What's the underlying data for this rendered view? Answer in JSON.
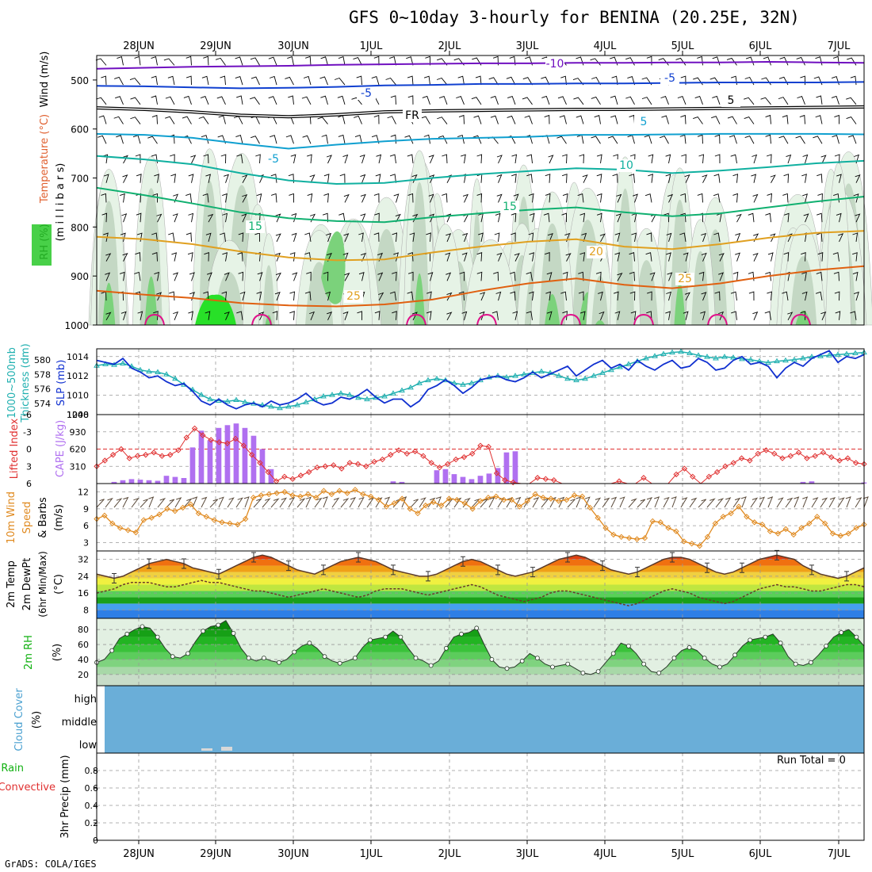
{
  "title": "GFS 0~10day 3-hourly for BENINA (20.25E, 32N)",
  "credit": "GrADS: COLA/IGES",
  "run_total": "Run Total = 0",
  "colors": {
    "slp": "#1030d0",
    "thickness": "#20b0b0",
    "lifted": "#e03030",
    "cape": "#b070f0",
    "wind10": "#e08a20",
    "rh": "#10b010",
    "cloud": "#6aaed8",
    "barb": "#000000",
    "t_purple": "#7010c0",
    "t_blue": "#1040d0",
    "t_cyan": "#10a0d0",
    "t_teal": "#10b0a0",
    "t_green": "#10b070",
    "t_orange": "#e0a020",
    "t_dkorange": "#e06010",
    "t_magenta": "#e0108a"
  },
  "chart_data": [
    {
      "type": "heatmap",
      "name": "upper-air",
      "x_labels": [
        "28JUN",
        "29JUN",
        "30JUN",
        "1JUL",
        "2JUL",
        "3JUL",
        "4JUL",
        "5JUL",
        "6JUL",
        "7JUL"
      ],
      "ylabel_parts": [
        "Wind (m/s)",
        "Temperature (°C)",
        "RH (%)",
        "(millibars)"
      ],
      "ylabel_millibars": "(m i l l i b a r s)",
      "ylabel_wind": "Wind (m/s)",
      "ylabel_temp": "Temperature (°C)",
      "ylabel_rh": "RH (%)",
      "y_ticks": [
        500,
        600,
        700,
        800,
        900,
        1000
      ],
      "ylim": [
        450,
        1000
      ],
      "contours": [
        {
          "label": "-10",
          "color": "purple",
          "level": [
            477,
            475,
            473,
            472,
            471,
            469,
            468,
            467,
            466,
            466,
            465,
            465,
            464,
            464,
            463,
            464,
            465
          ]
        },
        {
          "label": "-5",
          "color": "blue",
          "level": [
            512,
            513,
            515,
            517,
            516,
            514,
            511,
            510,
            508,
            508,
            507,
            507,
            506,
            505,
            505,
            505,
            504
          ]
        },
        {
          "label": "FR",
          "color": "black",
          "level": [
            557,
            560,
            565,
            572,
            575,
            571,
            565,
            563,
            562,
            561,
            560,
            560,
            559,
            558,
            557,
            556,
            555
          ]
        },
        {
          "label": "-5",
          "color": "cyan",
          "level": [
            610,
            612,
            618,
            630,
            640,
            632,
            625,
            620,
            618,
            616,
            612,
            612,
            611,
            610,
            610,
            610,
            611
          ]
        },
        {
          "label": "10",
          "color": "teal",
          "level": [
            655,
            662,
            672,
            690,
            705,
            712,
            710,
            700,
            692,
            686,
            680,
            683,
            690,
            685,
            678,
            670,
            665
          ]
        },
        {
          "label": "15",
          "color": "green",
          "level": [
            720,
            735,
            752,
            770,
            782,
            788,
            790,
            780,
            772,
            765,
            760,
            770,
            778,
            772,
            760,
            748,
            738
          ]
        },
        {
          "label": "20",
          "color": "orange",
          "level": [
            820,
            825,
            835,
            850,
            862,
            868,
            866,
            852,
            840,
            830,
            825,
            840,
            845,
            835,
            822,
            812,
            808
          ]
        },
        {
          "label": "25",
          "color": "dkorange",
          "level": [
            930,
            938,
            945,
            955,
            960,
            962,
            958,
            948,
            930,
            915,
            905,
            918,
            925,
            915,
            900,
            888,
            880
          ]
        }
      ],
      "contour_labels_shown": [
        "-10",
        "-5",
        "FR",
        "-5",
        "5",
        "-5",
        "10",
        "15",
        "15",
        "20",
        "25",
        "25",
        "5"
      ],
      "rh_shading_levels": [
        "50",
        "70",
        "90"
      ]
    },
    {
      "type": "line",
      "name": "slp-thickness",
      "ylabel_left": "Thickness (dm)",
      "ylabel_left2": "1000~500mb",
      "ylabel_right": "SLP (mb)",
      "left_ticks": [
        574,
        576,
        578,
        580
      ],
      "right_ticks": [
        1008,
        1010,
        1012,
        1014
      ],
      "ylim_left": [
        572.5,
        581.5
      ],
      "ylim_right": [
        1008,
        1014.8
      ],
      "series": [
        {
          "name": "SLP",
          "axis": "right",
          "values": [
            1013.6,
            1013.4,
            1013.2,
            1013.8,
            1012.8,
            1012.4,
            1011.8,
            1012.0,
            1011.4,
            1011.0,
            1011.2,
            1010.4,
            1009.4,
            1009.0,
            1009.6,
            1009.0,
            1008.6,
            1009.0,
            1009.2,
            1008.8,
            1009.4,
            1009.0,
            1009.2,
            1009.6,
            1010.2,
            1009.4,
            1009.0,
            1009.2,
            1009.8,
            1009.6,
            1010.0,
            1010.6,
            1009.8,
            1009.2,
            1009.6,
            1009.6,
            1008.8,
            1009.4,
            1010.6,
            1011.0,
            1011.6,
            1011.0,
            1010.2,
            1010.8,
            1011.6,
            1011.8,
            1012.0,
            1011.6,
            1011.4,
            1011.8,
            1012.4,
            1011.8,
            1012.2,
            1012.6,
            1013.0,
            1012.0,
            1012.6,
            1013.2,
            1013.6,
            1012.8,
            1013.2,
            1012.6,
            1013.6,
            1013.0,
            1012.6,
            1013.2,
            1013.6,
            1012.8,
            1013.0,
            1013.8,
            1013.4,
            1012.6,
            1012.8,
            1013.6,
            1014.0,
            1013.2,
            1013.4,
            1013.0,
            1011.8,
            1012.8,
            1013.4,
            1013.0,
            1013.8,
            1014.2,
            1014.6,
            1013.4,
            1014.0,
            1013.8,
            1014.2
          ]
        },
        {
          "name": "Thickness",
          "axis": "left",
          "values": [
            579.2,
            579.4,
            579.3,
            579.5,
            579.1,
            578.6,
            578.4,
            578.3,
            578.0,
            577.4,
            576.6,
            575.9,
            575.2,
            574.6,
            574.4,
            574.3,
            574.5,
            574.2,
            574.0,
            573.8,
            573.6,
            573.4,
            573.6,
            573.8,
            574.2,
            574.6,
            575.0,
            575.2,
            575.4,
            575.2,
            574.8,
            574.6,
            574.8,
            575.0,
            575.4,
            575.8,
            576.2,
            576.8,
            577.2,
            577.4,
            577.2,
            576.8,
            576.6,
            576.8,
            577.2,
            577.6,
            577.8,
            577.6,
            577.8,
            578.0,
            578.2,
            578.4,
            578.2,
            577.8,
            577.4,
            577.2,
            577.4,
            577.8,
            578.2,
            578.6,
            579.0,
            579.4,
            579.8,
            580.2,
            580.5,
            580.8,
            581.0,
            581.1,
            580.9,
            580.6,
            580.4,
            580.2,
            580.4,
            580.3,
            580.1,
            580.0,
            579.8,
            579.6,
            579.8,
            579.9,
            580.0,
            580.2,
            580.4,
            580.5,
            580.6,
            580.7,
            580.8,
            580.9,
            581.0
          ]
        }
      ]
    },
    {
      "type": "bar",
      "name": "lifted-cape",
      "ylabel_left": "Lifted Index",
      "ylabel_right": "CAPE (J/kg)",
      "left_ticks": [
        "-6",
        "-3",
        "0",
        "3",
        "6"
      ],
      "right_ticks": [
        "1240",
        "930",
        "620",
        "310"
      ],
      "ylim_left": [
        -6,
        6
      ],
      "ylim_right": [
        0,
        1240
      ],
      "cape_values": [
        0,
        0,
        30,
        60,
        80,
        70,
        60,
        50,
        140,
        120,
        100,
        650,
        950,
        780,
        1000,
        1050,
        1080,
        1000,
        860,
        620,
        260,
        0,
        0,
        0,
        0,
        0,
        0,
        0,
        0,
        0,
        0,
        0,
        0,
        0,
        40,
        30,
        0,
        0,
        0,
        240,
        260,
        170,
        120,
        80,
        140,
        180,
        280,
        560,
        580,
        0,
        0,
        0,
        0,
        0,
        0,
        0,
        0,
        0,
        0,
        0,
        0,
        0,
        0,
        0,
        0,
        0,
        0,
        0,
        0,
        0,
        0,
        0,
        0,
        0,
        0,
        0,
        0,
        0,
        0,
        0,
        0,
        30,
        40,
        0,
        0,
        0,
        0,
        0,
        20
      ],
      "lifted_values": [
        3.0,
        2.0,
        1.0,
        0.0,
        1.6,
        1.2,
        1.0,
        0.6,
        1.2,
        1.0,
        0.2,
        -2.0,
        -3.6,
        -2.4,
        -1.6,
        -1.2,
        -1.0,
        -1.8,
        -0.6,
        1.0,
        2.4,
        4.0,
        5.6,
        4.8,
        5.2,
        4.6,
        4.0,
        3.2,
        3.0,
        2.8,
        3.4,
        2.4,
        2.6,
        3.0,
        2.2,
        1.8,
        1.0,
        0.2,
        0.8,
        0.4,
        1.2,
        2.4,
        3.2,
        2.6,
        1.8,
        1.4,
        0.8,
        -0.6,
        -0.4,
        4.2,
        5.4,
        5.8,
        6.2,
        6.2,
        5.0,
        5.2,
        5.4,
        6.0,
        6.0,
        6.0,
        6.2,
        6.4,
        6.2,
        6.2,
        5.6,
        6.0,
        6.0,
        5.0,
        6.0,
        6.0,
        6.0,
        4.4,
        3.4,
        4.8,
        6.0,
        4.8,
        4.0,
        3.0,
        2.4,
        1.6,
        2.0,
        0.8,
        0.2,
        0.8,
        1.6,
        1.2,
        0.6,
        1.6,
        1.2,
        0.6,
        1.4,
        2.0,
        1.6,
        2.4,
        2.6
      ]
    },
    {
      "type": "line",
      "name": "wind10m",
      "ylabel": "10m Wind Speed & Barbs (m/s)",
      "ylabel_a": "10m Wind",
      "ylabel_b": "Speed",
      "ylabel_c": "& Barbs",
      "ylabel_d": "(m/s)",
      "y_ticks": [
        "3",
        "6",
        "9",
        "12"
      ],
      "ylim": [
        1.5,
        13.5
      ],
      "values": [
        7.2,
        7.8,
        6.4,
        5.6,
        5.2,
        4.8,
        7.0,
        7.4,
        8.0,
        9.0,
        8.6,
        9.2,
        9.8,
        8.2,
        7.6,
        7.0,
        6.6,
        6.4,
        6.2,
        7.2,
        11.0,
        11.4,
        11.6,
        11.8,
        12.0,
        11.4,
        11.2,
        11.6,
        11.0,
        12.2,
        11.6,
        12.2,
        11.8,
        12.4,
        11.6,
        11.2,
        10.6,
        9.4,
        10.0,
        10.8,
        9.0,
        8.2,
        9.6,
        10.2,
        9.6,
        10.8,
        10.6,
        10.0,
        9.0,
        10.4,
        11.0,
        11.2,
        10.6,
        10.6,
        9.4,
        10.4,
        11.6,
        11.0,
        10.8,
        10.4,
        10.6,
        11.4,
        11.2,
        9.2,
        7.4,
        5.6,
        4.4,
        4.0,
        3.8,
        3.6,
        3.8,
        6.8,
        6.6,
        5.6,
        5.0,
        3.2,
        2.8,
        2.4,
        4.0,
        6.4,
        7.6,
        8.2,
        9.4,
        7.6,
        6.6,
        6.2,
        5.0,
        4.6,
        5.4,
        4.4,
        5.6,
        6.4,
        7.6,
        6.4,
        4.6,
        4.2,
        4.6,
        5.6,
        6.2
      ]
    },
    {
      "type": "area",
      "name": "temperature",
      "ylabel_a": "2m Temp",
      "ylabel_b": "2m DewPt",
      "ylabel_c": "(6hr Min/Max)",
      "ylabel_d": "(°C)",
      "y_ticks": [
        "8",
        "16",
        "24",
        "32"
      ],
      "ylim": [
        4,
        36
      ],
      "band_colors": [
        "#2e7fe6",
        "#46a0ee",
        "#1aa01a",
        "#58d058",
        "#bfe640",
        "#f0f040",
        "#f0d040",
        "#f0a018",
        "#f07010",
        "#e04010"
      ],
      "band_edges": [
        4,
        8,
        11,
        14,
        17,
        20,
        23,
        26,
        29,
        32,
        36
      ],
      "temp_values": [
        25,
        24,
        23,
        24,
        26,
        28,
        30,
        31,
        32,
        31,
        30,
        28,
        27,
        26,
        25,
        27,
        29,
        31,
        33,
        34,
        33,
        31,
        29,
        27,
        26,
        25,
        27,
        29,
        31,
        32,
        33,
        32,
        31,
        29,
        27,
        26,
        25,
        24,
        24,
        25,
        27,
        29,
        31,
        32,
        31,
        29,
        27,
        25,
        24,
        25,
        26,
        28,
        30,
        32,
        33,
        34,
        33,
        31,
        29,
        27,
        26,
        25,
        26,
        28,
        30,
        32,
        33,
        33,
        32,
        30,
        28,
        26,
        25,
        26,
        28,
        30,
        32,
        33,
        34,
        33,
        32,
        29,
        27,
        25,
        24,
        23,
        24,
        26,
        28
      ],
      "dew_values": [
        16,
        17,
        18,
        20,
        21,
        21,
        21,
        20,
        19,
        19,
        20,
        21,
        22,
        21,
        21,
        20,
        19,
        18,
        17,
        17,
        16,
        15,
        14,
        15,
        16,
        17,
        18,
        17,
        16,
        15,
        14,
        15,
        17,
        18,
        18,
        18,
        17,
        16,
        15,
        16,
        17,
        18,
        19,
        20,
        19,
        17,
        15,
        14,
        13,
        12,
        13,
        14,
        16,
        17,
        17,
        16,
        15,
        14,
        13,
        12,
        11,
        10,
        11,
        13,
        15,
        17,
        18,
        17,
        16,
        14,
        13,
        12,
        11,
        12,
        14,
        16,
        18,
        19,
        20,
        19,
        19,
        18,
        17,
        17,
        18,
        19,
        20,
        20,
        19
      ]
    },
    {
      "type": "area",
      "name": "rh2m",
      "ylabel": "2m RH",
      "ylabel_unit": "(%)",
      "y_ticks": [
        "20",
        "40",
        "60",
        "80"
      ],
      "ylim": [
        5,
        95
      ],
      "values": [
        36,
        40,
        52,
        68,
        74,
        80,
        84,
        82,
        70,
        55,
        44,
        42,
        48,
        64,
        78,
        84,
        86,
        92,
        75,
        55,
        42,
        38,
        42,
        38,
        36,
        40,
        50,
        58,
        62,
        55,
        44,
        38,
        35,
        38,
        42,
        56,
        66,
        68,
        70,
        78,
        70,
        55,
        42,
        38,
        32,
        38,
        55,
        70,
        74,
        76,
        82,
        60,
        40,
        30,
        28,
        30,
        38,
        48,
        42,
        34,
        30,
        32,
        34,
        28,
        22,
        20,
        24,
        36,
        48,
        62,
        58,
        48,
        34,
        24,
        22,
        30,
        42,
        52,
        56,
        52,
        42,
        34,
        30,
        34,
        46,
        58,
        66,
        68,
        70,
        74,
        62,
        44,
        34,
        32,
        36,
        46,
        58,
        70,
        76,
        80,
        70,
        58
      ]
    },
    {
      "type": "table",
      "name": "cloud-cover",
      "ylabel_a": "Cloud Cover",
      "ylabel_b": "(%)",
      "rows": [
        "high",
        "middle",
        "low"
      ]
    },
    {
      "type": "bar",
      "name": "precip",
      "ylabel_a": "Total / Rain",
      "ylabel_b": "Convective",
      "ylabel_c": "3hr Precip (mm)",
      "y_ticks": [
        "0",
        "0.2",
        "0.4",
        "0.6",
        "0.8"
      ],
      "ylim": [
        0,
        1.0
      ],
      "values": []
    }
  ]
}
